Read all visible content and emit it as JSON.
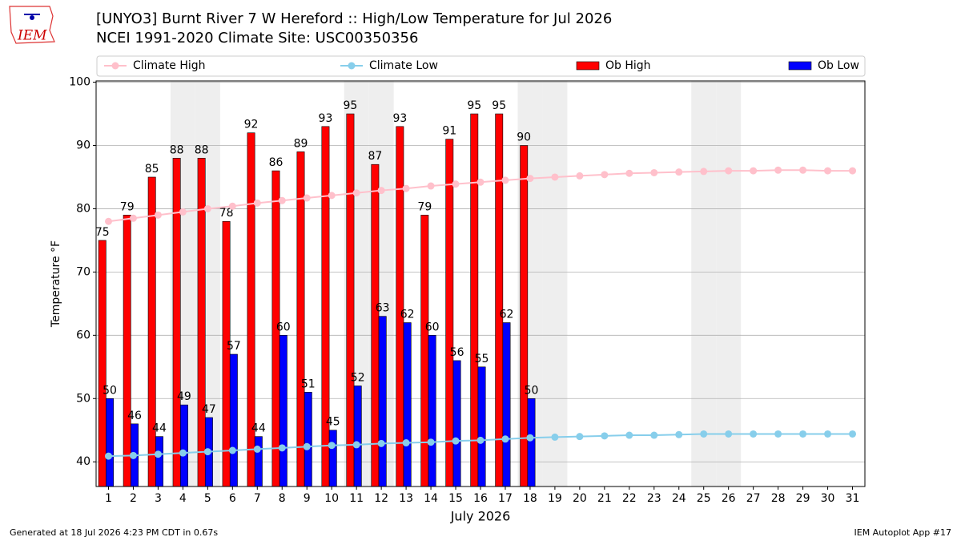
{
  "logo_text": "IEM",
  "chart_data": {
    "type": "bar",
    "title": "[UNYO3] Burnt River 7 W Hereford :: High/Low Temperature for Jul 2026",
    "subtitle": "NCEI 1991-2020 Climate Site: USC00350356",
    "x_label": "July 2026",
    "y_label": "Temperature °F",
    "footer_left": "Generated at 18 Jul 2026 4:23 PM CDT in 0.67s",
    "footer_right": "IEM Autoplot App #17",
    "x": [
      1,
      2,
      3,
      4,
      5,
      6,
      7,
      8,
      9,
      10,
      11,
      12,
      13,
      14,
      15,
      16,
      17,
      18,
      19,
      20,
      21,
      22,
      23,
      24,
      25,
      26,
      27,
      28,
      29,
      30,
      31
    ],
    "xlim": [
      0.5,
      31.5
    ],
    "xticks": [
      1,
      2,
      3,
      4,
      5,
      6,
      7,
      8,
      9,
      10,
      11,
      12,
      13,
      14,
      15,
      16,
      17,
      18,
      19,
      20,
      21,
      22,
      23,
      24,
      25,
      26,
      27,
      28,
      29,
      30,
      31
    ],
    "ylim": [
      36.1,
      100.2
    ],
    "yticks": [
      40,
      50,
      60,
      70,
      80,
      90,
      100
    ],
    "grid": true,
    "shaded_days": [
      4,
      5,
      11,
      12,
      18,
      19,
      25,
      26
    ],
    "series": [
      {
        "name": "Climate High",
        "kind": "line",
        "color": "#ffc0cb",
        "values": [
          78.0,
          78.5,
          79.0,
          79.5,
          80.0,
          80.4,
          80.9,
          81.3,
          81.7,
          82.1,
          82.5,
          82.9,
          83.2,
          83.6,
          83.9,
          84.2,
          84.5,
          84.8,
          85.0,
          85.2,
          85.4,
          85.6,
          85.7,
          85.8,
          85.9,
          86.0,
          86.0,
          86.1,
          86.1,
          86.0,
          86.0
        ]
      },
      {
        "name": "Climate Low",
        "kind": "line",
        "color": "#87ceeb",
        "values": [
          40.9,
          41.0,
          41.2,
          41.4,
          41.6,
          41.8,
          42.0,
          42.2,
          42.4,
          42.6,
          42.7,
          42.9,
          43.0,
          43.1,
          43.3,
          43.4,
          43.6,
          43.8,
          43.9,
          44.0,
          44.1,
          44.2,
          44.2,
          44.3,
          44.4,
          44.4,
          44.4,
          44.4,
          44.4,
          44.4,
          44.4
        ]
      },
      {
        "name": "Ob High",
        "kind": "bar",
        "color": "#ff0000",
        "values": [
          75,
          79,
          85,
          88,
          88,
          78,
          92,
          86,
          89,
          93,
          95,
          87,
          93,
          79,
          91,
          95,
          95,
          90,
          null,
          null,
          null,
          null,
          null,
          null,
          null,
          null,
          null,
          null,
          null,
          null,
          null
        ]
      },
      {
        "name": "Ob Low",
        "kind": "bar",
        "color": "#0000ff",
        "values": [
          50,
          46,
          44,
          49,
          47,
          57,
          44,
          60,
          51,
          45,
          52,
          63,
          62,
          60,
          56,
          55,
          62,
          50,
          null,
          null,
          null,
          null,
          null,
          null,
          null,
          null,
          null,
          null,
          null,
          null,
          null
        ]
      }
    ]
  }
}
